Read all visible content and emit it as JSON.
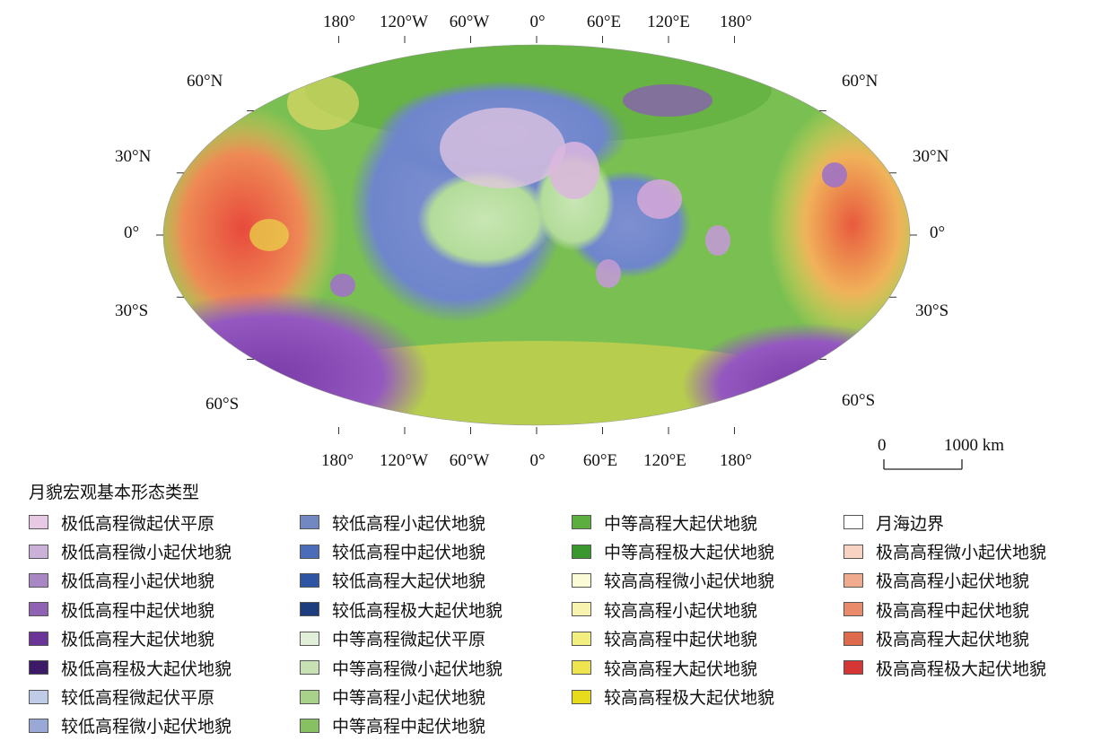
{
  "map": {
    "top_lon_labels": [
      "180°",
      "120°W",
      "60°W",
      "0°",
      "60°E",
      "120°E",
      "180°"
    ],
    "bottom_lon_labels": [
      "180°",
      "120°W",
      "60°W",
      "0°",
      "60°E",
      "120°E",
      "180°"
    ],
    "left_lat_labels": [
      "60°N",
      "30°N",
      "0°",
      "30°S",
      "60°S"
    ],
    "right_lat_labels": [
      "60°N",
      "30°N",
      "0°",
      "30°S",
      "60°S"
    ]
  },
  "scale_bar": {
    "start": "0",
    "end": "1000 km"
  },
  "legend": {
    "title": "月貌宏观基本形态类型",
    "columns": [
      [
        {
          "label": "极低高程微起伏平原",
          "color": "#e8c9e3"
        },
        {
          "label": "极低高程微小起伏地貌",
          "color": "#cbb0d8"
        },
        {
          "label": "极低高程小起伏地貌",
          "color": "#a986c4"
        },
        {
          "label": "极低高程中起伏地貌",
          "color": "#8f62b4"
        },
        {
          "label": "极低高程大起伏地貌",
          "color": "#6a3596"
        },
        {
          "label": "极低高程极大起伏地貌",
          "color": "#3d1a68"
        },
        {
          "label": "较低高程微起伏平原",
          "color": "#c0cbe8"
        },
        {
          "label": "较低高程微小起伏地貌",
          "color": "#99a8d6"
        }
      ],
      [
        {
          "label": "较低高程小起伏地貌",
          "color": "#7188c2"
        },
        {
          "label": "较低高程中起伏地貌",
          "color": "#4b6cb8"
        },
        {
          "label": "较低高程大起伏地貌",
          "color": "#2e55a3"
        },
        {
          "label": "较低高程极大起伏地貌",
          "color": "#1d3d7e"
        },
        {
          "label": "中等高程微起伏平原",
          "color": "#e2efd8"
        },
        {
          "label": "中等高程微小起伏地貌",
          "color": "#c7e1b4"
        },
        {
          "label": "中等高程小起伏地貌",
          "color": "#a8d18a"
        },
        {
          "label": "中等高程中起伏地貌",
          "color": "#86c062"
        }
      ],
      [
        {
          "label": "中等高程大起伏地貌",
          "color": "#5caf3e"
        },
        {
          "label": "中等高程极大起伏地貌",
          "color": "#3a962e"
        },
        {
          "label": "较高高程微小起伏地貌",
          "color": "#fbfbd8"
        },
        {
          "label": "较高高程小起伏地貌",
          "color": "#f8f4b0"
        },
        {
          "label": "较高高程中起伏地貌",
          "color": "#f3ee80"
        },
        {
          "label": "较高高程大起伏地貌",
          "color": "#eee44e"
        },
        {
          "label": "较高高程极大起伏地貌",
          "color": "#e8da1c"
        }
      ],
      [
        {
          "label": "月海边界",
          "color": "#ffffff"
        },
        {
          "label": "极高高程微小起伏地貌",
          "color": "#f8d2c2"
        },
        {
          "label": "极高高程小起伏地貌",
          "color": "#f0ab8e"
        },
        {
          "label": "极高高程中起伏地貌",
          "color": "#e98b6a"
        },
        {
          "label": "极高高程大起伏地貌",
          "color": "#e06a4e"
        },
        {
          "label": "极高高程极大起伏地貌",
          "color": "#d63535"
        }
      ]
    ]
  }
}
